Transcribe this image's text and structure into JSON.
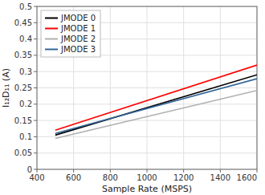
{
  "chart_data": {
    "type": "line",
    "title": "",
    "x_label": "Sample Rate (MSPS)",
    "y_label": "I₁₂D₁₁ (A)",
    "x": [
      500,
      1600
    ],
    "series": [
      {
        "name": "JMODE 0",
        "color": "#000000",
        "values": [
          0.105,
          0.29
        ]
      },
      {
        "name": "JMODE 1",
        "color": "#ff0000",
        "values": [
          0.12,
          0.32
        ]
      },
      {
        "name": "JMODE 2",
        "color": "#b0b0b0",
        "values": [
          0.095,
          0.242
        ]
      },
      {
        "name": "JMODE 3",
        "color": "#336699",
        "values": [
          0.11,
          0.278
        ]
      }
    ],
    "xlim": [
      400,
      1600
    ],
    "ylim": [
      0,
      0.5
    ],
    "xticks": [
      400,
      600,
      800,
      1000,
      1200,
      1400,
      1600
    ],
    "yticks": [
      0,
      0.05,
      0.1,
      0.15,
      0.2,
      0.25,
      0.3,
      0.35,
      0.4,
      0.45,
      0.5
    ],
    "grid": true,
    "legend": "top-left"
  }
}
